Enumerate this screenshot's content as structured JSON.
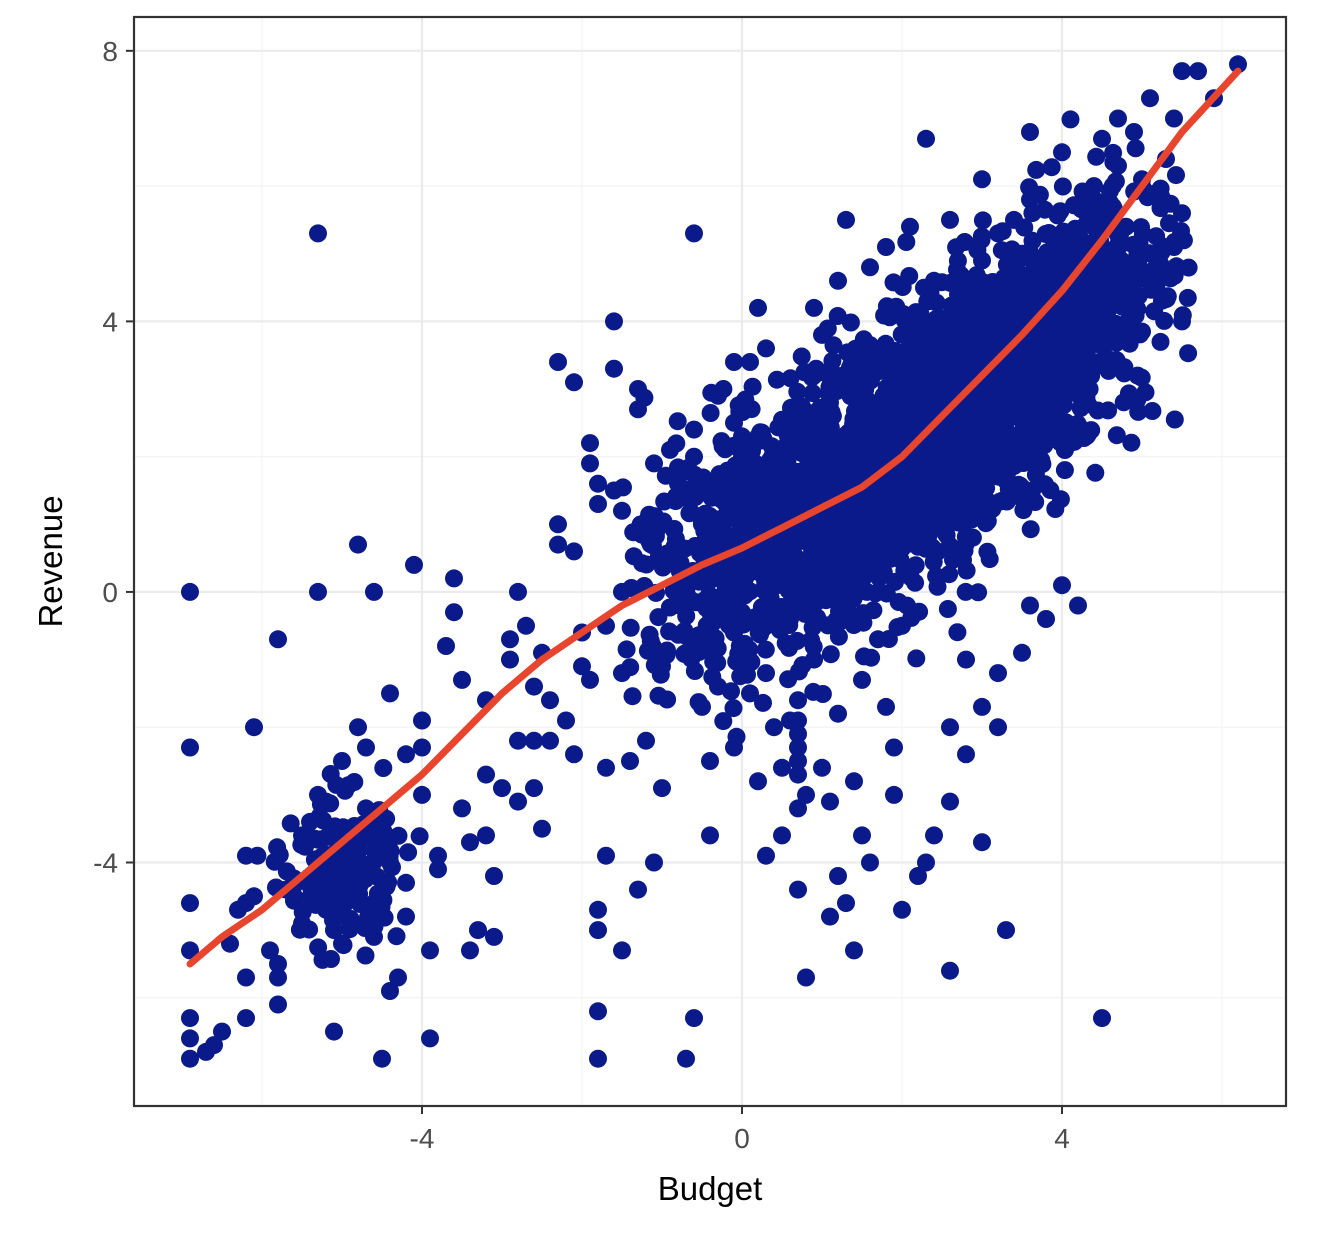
{
  "chart_data": {
    "type": "scatter",
    "title": "",
    "xlabel": "Budget",
    "ylabel": "Revenue",
    "xlim": [
      -7.6,
      6.8
    ],
    "ylim": [
      -7.6,
      8.5
    ],
    "x_ticks": [
      -4,
      0,
      4
    ],
    "y_ticks": [
      -4,
      0,
      4,
      8
    ],
    "x_tick_labels": [
      "-4",
      "0",
      "4"
    ],
    "y_tick_labels": [
      "-4",
      "0",
      "4",
      "8"
    ],
    "grid": true,
    "legend": "none",
    "colors": {
      "points": "#0a1a8a",
      "smooth_line": "#e8452e",
      "panel_border": "#333333",
      "grid": "#ebebeb"
    },
    "series": [
      {
        "kind": "points",
        "cluster_note": "dense central cloud of several thousand points spanning roughly x -1..6, y -4..7",
        "points": [
          [
            -6.9,
            0.0
          ],
          [
            -6.9,
            -2.3
          ],
          [
            -6.9,
            -4.6
          ],
          [
            -6.9,
            -5.3
          ],
          [
            -6.9,
            -6.3
          ],
          [
            -6.9,
            -6.6
          ],
          [
            -6.9,
            -6.9
          ],
          [
            -6.7,
            -6.8
          ],
          [
            -6.6,
            -6.7
          ],
          [
            -6.5,
            -6.5
          ],
          [
            -6.4,
            -5.2
          ],
          [
            -6.3,
            -4.7
          ],
          [
            -6.2,
            -4.6
          ],
          [
            -6.1,
            -4.5
          ],
          [
            -6.2,
            -3.9
          ],
          [
            -6.2,
            -5.7
          ],
          [
            -6.2,
            -6.3
          ],
          [
            -6.1,
            -2.0
          ],
          [
            -5.9,
            -5.3
          ],
          [
            -5.8,
            -5.5
          ],
          [
            -5.8,
            -5.7
          ],
          [
            -5.8,
            -6.1
          ],
          [
            -5.8,
            -0.7
          ],
          [
            -5.7,
            -4.4
          ],
          [
            -5.6,
            -4.5
          ],
          [
            -5.5,
            -4.9
          ],
          [
            -5.5,
            -3.6
          ],
          [
            -5.4,
            -3.4
          ],
          [
            -5.3,
            -3.0
          ],
          [
            -5.3,
            -4.3
          ],
          [
            -5.3,
            0.0
          ],
          [
            -5.3,
            5.3
          ],
          [
            -5.2,
            -3.1
          ],
          [
            -5.2,
            -4.7
          ],
          [
            -5.1,
            -5.0
          ],
          [
            -5.1,
            -6.5
          ],
          [
            -5.0,
            -5.2
          ],
          [
            -5.0,
            -2.5
          ],
          [
            -5.0,
            -3.8
          ],
          [
            -4.9,
            -4.1
          ],
          [
            -4.8,
            -4.4
          ],
          [
            -4.8,
            -2.0
          ],
          [
            -4.7,
            -2.3
          ],
          [
            -4.7,
            -3.2
          ],
          [
            -4.6,
            -4.6
          ],
          [
            -4.6,
            -5.1
          ],
          [
            -4.5,
            -3.6
          ],
          [
            -4.5,
            -6.9
          ],
          [
            -4.4,
            -4.0
          ],
          [
            -4.8,
            0.7
          ],
          [
            -4.6,
            0.0
          ],
          [
            -4.4,
            -1.5
          ],
          [
            -4.4,
            -5.9
          ],
          [
            -4.3,
            -5.7
          ],
          [
            -4.2,
            -4.8
          ],
          [
            -4.2,
            -4.3
          ],
          [
            -4.2,
            -2.4
          ],
          [
            -4.1,
            0.4
          ],
          [
            -4.0,
            -3.0
          ],
          [
            -4.0,
            -2.3
          ],
          [
            -4.0,
            -1.9
          ],
          [
            -3.9,
            -6.6
          ],
          [
            -3.9,
            -5.3
          ],
          [
            -3.8,
            -4.1
          ],
          [
            -3.8,
            -3.9
          ],
          [
            -3.7,
            -0.8
          ],
          [
            -3.6,
            -0.3
          ],
          [
            -3.6,
            0.2
          ],
          [
            -3.5,
            -1.3
          ],
          [
            -3.5,
            -3.2
          ],
          [
            -3.4,
            -3.7
          ],
          [
            -3.4,
            -5.3
          ],
          [
            -3.3,
            -5.0
          ],
          [
            -3.2,
            -1.6
          ],
          [
            -3.2,
            -2.7
          ],
          [
            -3.2,
            -3.6
          ],
          [
            -3.1,
            -4.2
          ],
          [
            -3.1,
            -5.1
          ],
          [
            -3.0,
            -2.9
          ],
          [
            -2.9,
            -0.7
          ],
          [
            -2.9,
            -1.0
          ],
          [
            -2.8,
            -2.2
          ],
          [
            -2.8,
            -3.1
          ],
          [
            -2.8,
            0.0
          ],
          [
            -2.7,
            -0.5
          ],
          [
            -2.6,
            -1.4
          ],
          [
            -2.6,
            -2.9
          ],
          [
            -2.6,
            -2.2
          ],
          [
            -2.5,
            -3.5
          ],
          [
            -2.5,
            -0.9
          ],
          [
            -2.4,
            -1.6
          ],
          [
            -2.4,
            -2.2
          ],
          [
            -2.3,
            0.7
          ],
          [
            -2.3,
            1.0
          ],
          [
            -2.3,
            3.4
          ],
          [
            -2.2,
            -1.9
          ],
          [
            -2.1,
            -2.4
          ],
          [
            -2.1,
            0.6
          ],
          [
            -2.1,
            3.1
          ],
          [
            -2.0,
            -0.6
          ],
          [
            -2.0,
            -1.1
          ],
          [
            -1.9,
            -1.3
          ],
          [
            -1.9,
            2.2
          ],
          [
            -1.9,
            1.9
          ],
          [
            -1.8,
            1.6
          ],
          [
            -1.8,
            1.3
          ],
          [
            -1.8,
            -6.2
          ],
          [
            -1.8,
            -6.9
          ],
          [
            -1.8,
            -5.0
          ],
          [
            -1.8,
            -4.7
          ],
          [
            -1.7,
            -3.9
          ],
          [
            -1.7,
            -2.6
          ],
          [
            -1.7,
            -0.5
          ],
          [
            -1.6,
            3.3
          ],
          [
            -1.6,
            4.0
          ],
          [
            -1.6,
            1.5
          ],
          [
            -1.5,
            1.2
          ],
          [
            -1.5,
            0.0
          ],
          [
            -1.5,
            -1.2
          ],
          [
            -1.5,
            -5.3
          ],
          [
            -1.4,
            -2.5
          ],
          [
            -1.3,
            3.0
          ],
          [
            -1.3,
            2.7
          ],
          [
            -1.3,
            -4.4
          ],
          [
            -1.2,
            -2.2
          ],
          [
            -1.1,
            1.9
          ],
          [
            -1.1,
            -4.0
          ],
          [
            -1.0,
            -2.9
          ],
          [
            -1.0,
            -1.1
          ],
          [
            -0.9,
            2.1
          ],
          [
            -0.8,
            1.6
          ],
          [
            -0.8,
            0.4
          ],
          [
            -0.7,
            -0.9
          ],
          [
            -0.7,
            -6.9
          ],
          [
            -0.6,
            5.3
          ],
          [
            -0.6,
            -6.3
          ],
          [
            -0.6,
            2.0
          ],
          [
            -0.5,
            1.0
          ],
          [
            -0.5,
            -1.7
          ],
          [
            -0.4,
            -2.5
          ],
          [
            -0.4,
            -3.6
          ],
          [
            -0.3,
            2.9
          ],
          [
            -0.3,
            -1.4
          ],
          [
            -0.2,
            1.7
          ],
          [
            -0.2,
            -0.1
          ],
          [
            -0.1,
            -0.6
          ],
          [
            -0.1,
            3.4
          ],
          [
            -0.1,
            2.5
          ],
          [
            -0.1,
            -2.3
          ],
          [
            0.0,
            1.3
          ],
          [
            0.0,
            0.8
          ],
          [
            0.0,
            -0.3
          ],
          [
            0.0,
            2.0
          ],
          [
            0.0,
            2.3
          ],
          [
            -0.6,
            2.4
          ],
          [
            0.1,
            3.4
          ],
          [
            0.2,
            4.2
          ],
          [
            0.3,
            3.6
          ],
          [
            0.4,
            1.6
          ],
          [
            0.5,
            2.5
          ],
          [
            0.6,
            1.0
          ],
          [
            0.6,
            -0.4
          ],
          [
            0.7,
            -1.6
          ],
          [
            0.7,
            -2.3
          ],
          [
            0.7,
            -3.2
          ],
          [
            0.7,
            -4.4
          ],
          [
            0.8,
            -5.7
          ],
          [
            0.9,
            3.2
          ],
          [
            0.9,
            4.2
          ],
          [
            1.0,
            3.8
          ],
          [
            1.0,
            2.2
          ],
          [
            1.1,
            2.8
          ],
          [
            1.2,
            4.6
          ],
          [
            1.3,
            5.5
          ],
          [
            1.3,
            3.1
          ],
          [
            1.4,
            2.4
          ],
          [
            1.5,
            1.9
          ],
          [
            1.6,
            4.8
          ],
          [
            1.6,
            3.4
          ],
          [
            1.7,
            1.2
          ],
          [
            1.8,
            5.1
          ],
          [
            1.8,
            -1.7
          ],
          [
            1.9,
            -2.3
          ],
          [
            1.9,
            -3.0
          ],
          [
            2.0,
            4.1
          ],
          [
            2.1,
            3.3
          ],
          [
            2.1,
            5.4
          ],
          [
            2.2,
            2.7
          ],
          [
            2.3,
            1.8
          ],
          [
            2.3,
            6.7
          ],
          [
            2.4,
            4.6
          ],
          [
            2.5,
            3.7
          ],
          [
            2.6,
            2.6
          ],
          [
            2.6,
            5.5
          ],
          [
            2.7,
            4.4
          ],
          [
            2.8,
            3.5
          ],
          [
            2.9,
            1.6
          ],
          [
            3.0,
            4.9
          ],
          [
            3.0,
            6.1
          ],
          [
            3.1,
            2.7
          ],
          [
            3.2,
            5.3
          ],
          [
            3.3,
            3.6
          ],
          [
            3.4,
            4.8
          ],
          [
            3.5,
            2.9
          ],
          [
            3.6,
            5.8
          ],
          [
            3.6,
            6.8
          ],
          [
            3.7,
            4.2
          ],
          [
            3.8,
            3.1
          ],
          [
            3.9,
            5.2
          ],
          [
            4.0,
            6.5
          ],
          [
            4.1,
            4.9
          ],
          [
            4.1,
            2.2
          ],
          [
            4.2,
            5.7
          ],
          [
            4.3,
            3.8
          ],
          [
            4.4,
            6.0
          ],
          [
            4.5,
            5.1
          ],
          [
            4.5,
            6.7
          ],
          [
            4.6,
            4.5
          ],
          [
            4.7,
            6.3
          ],
          [
            4.7,
            7.0
          ],
          [
            4.8,
            5.4
          ],
          [
            4.9,
            6.8
          ],
          [
            5.0,
            4.7
          ],
          [
            5.0,
            6.1
          ],
          [
            5.1,
            7.3
          ],
          [
            5.2,
            5.9
          ],
          [
            5.3,
            6.4
          ],
          [
            5.4,
            5.1
          ],
          [
            5.4,
            7.0
          ],
          [
            5.5,
            5.6
          ],
          [
            5.5,
            7.7
          ],
          [
            5.5,
            4.0
          ],
          [
            5.7,
            7.7
          ],
          [
            5.9,
            7.3
          ],
          [
            6.2,
            7.8
          ],
          [
            4.2,
            -0.2
          ],
          [
            4.0,
            0.1
          ],
          [
            3.8,
            -0.4
          ],
          [
            3.5,
            -0.9
          ],
          [
            3.2,
            -1.2
          ],
          [
            3.0,
            -1.7
          ],
          [
            2.8,
            -2.4
          ],
          [
            2.6,
            -3.1
          ],
          [
            2.4,
            -3.6
          ],
          [
            2.2,
            -4.2
          ],
          [
            2.0,
            -4.7
          ],
          [
            2.3,
            -4.0
          ],
          [
            2.6,
            -5.6
          ],
          [
            3.3,
            -5.0
          ],
          [
            3.0,
            -3.7
          ],
          [
            4.5,
            -6.3
          ],
          [
            2.6,
            -2.0
          ],
          [
            3.2,
            -2.0
          ],
          [
            2.8,
            -1.0
          ],
          [
            3.6,
            -0.2
          ],
          [
            2.0,
            -0.5
          ],
          [
            1.7,
            -0.7
          ],
          [
            1.5,
            -1.3
          ],
          [
            1.2,
            -1.8
          ],
          [
            1.0,
            -2.6
          ],
          [
            0.8,
            -3.0
          ],
          [
            0.5,
            -3.6
          ],
          [
            0.3,
            -3.9
          ],
          [
            0.2,
            -2.8
          ],
          [
            0.1,
            -1.5
          ],
          [
            1.4,
            -2.8
          ],
          [
            1.5,
            -3.6
          ],
          [
            1.6,
            -4.0
          ],
          [
            1.3,
            -4.6
          ],
          [
            1.1,
            -4.8
          ],
          [
            1.2,
            -4.2
          ],
          [
            1.4,
            -5.3
          ],
          [
            1.1,
            -3.1
          ],
          [
            0.9,
            -1.0
          ],
          [
            0.4,
            -2.0
          ],
          [
            0.3,
            -1.2
          ],
          [
            0.5,
            -2.6
          ],
          [
            0.6,
            -1.9
          ],
          [
            0.7,
            -1.9
          ],
          [
            0.7,
            -2.1
          ],
          [
            0.7,
            -2.5
          ],
          [
            0.7,
            -2.7
          ]
        ]
      },
      {
        "kind": "smooth_line",
        "name": "",
        "points": [
          [
            -6.9,
            -5.5
          ],
          [
            -6.5,
            -5.1
          ],
          [
            -6.0,
            -4.7
          ],
          [
            -5.5,
            -4.2
          ],
          [
            -5.0,
            -3.7
          ],
          [
            -4.5,
            -3.2
          ],
          [
            -4.0,
            -2.7
          ],
          [
            -3.5,
            -2.1
          ],
          [
            -3.0,
            -1.5
          ],
          [
            -2.5,
            -1.0
          ],
          [
            -2.0,
            -0.6
          ],
          [
            -1.5,
            -0.2
          ],
          [
            -1.0,
            0.1
          ],
          [
            -0.5,
            0.4
          ],
          [
            0.0,
            0.65
          ],
          [
            0.5,
            0.95
          ],
          [
            1.0,
            1.25
          ],
          [
            1.5,
            1.55
          ],
          [
            2.0,
            2.0
          ],
          [
            2.5,
            2.6
          ],
          [
            3.0,
            3.2
          ],
          [
            3.5,
            3.8
          ],
          [
            4.0,
            4.45
          ],
          [
            4.5,
            5.2
          ],
          [
            5.0,
            6.0
          ],
          [
            5.5,
            6.8
          ],
          [
            6.2,
            7.7
          ]
        ]
      }
    ]
  }
}
